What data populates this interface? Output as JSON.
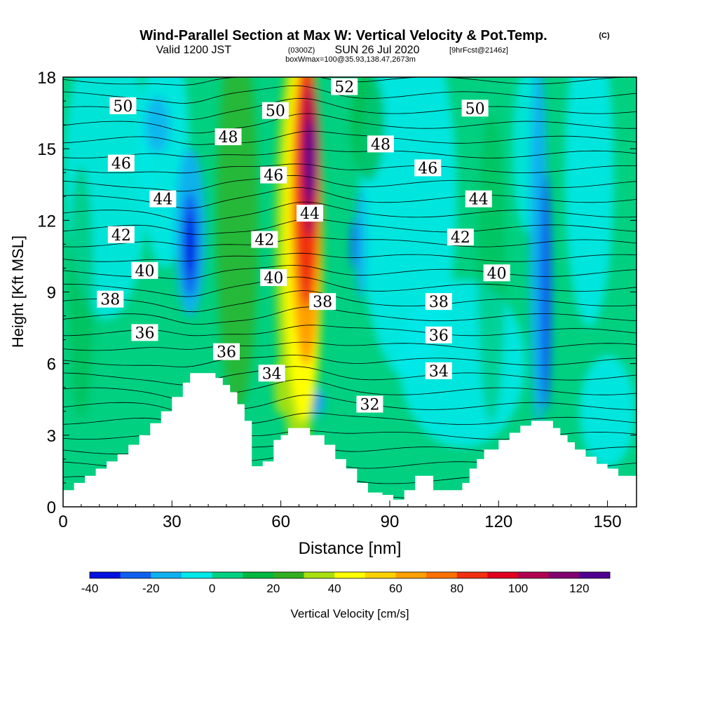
{
  "header": {
    "title_main": "Wind-Parallel Section at Max W: Vertical Velocity & Pot.Temp.",
    "title_copyright": "(C)",
    "valid_prefix": "Valid 1200 JST",
    "valid_utc": "(0300Z)",
    "valid_date": "SUN 26 Jul 2020",
    "forecast_tag": "[9hrFcst@2146z]",
    "box_info": "boxWmax=100@35.93,138.47,2673m"
  },
  "chart_data": {
    "type": "heatmap",
    "xlabel": "Distance [nm]",
    "ylabel": "Height [Kft MSL]",
    "xlim": [
      0,
      158
    ],
    "ylim": [
      0,
      18
    ],
    "x_ticks": [
      "0",
      "30",
      "60",
      "90",
      "120",
      "150"
    ],
    "y_ticks": [
      "0",
      "3",
      "6",
      "9",
      "12",
      "15",
      "18"
    ],
    "colorbar": {
      "label": "Vertical Velocity [cm/s]",
      "range": [
        -40,
        130
      ],
      "tick_labels": [
        "-40",
        "-20",
        "0",
        "20",
        "40",
        "60",
        "80",
        "100",
        "120"
      ],
      "colors": [
        "#0010e0",
        "#1060f0",
        "#10b0f0",
        "#00e8e8",
        "#00d080",
        "#00b840",
        "#30b020",
        "#a8e010",
        "#ffff00",
        "#ffd000",
        "#ffa000",
        "#ff7000",
        "#f03010",
        "#e00020",
        "#b00050",
        "#800070",
        "#500090"
      ]
    },
    "theta_contour_labels": [
      {
        "value": "50",
        "x": 16.5,
        "y": 16.8
      },
      {
        "value": "50",
        "x": 58.5,
        "y": 16.6
      },
      {
        "value": "52",
        "x": 77.5,
        "y": 17.6
      },
      {
        "value": "50",
        "x": 113.5,
        "y": 16.7
      },
      {
        "value": "48",
        "x": 45.5,
        "y": 15.5
      },
      {
        "value": "48",
        "x": 87.5,
        "y": 15.2
      },
      {
        "value": "46",
        "x": 16.0,
        "y": 14.4
      },
      {
        "value": "46",
        "x": 58.0,
        "y": 13.9
      },
      {
        "value": "46",
        "x": 100.5,
        "y": 14.2
      },
      {
        "value": "44",
        "x": 27.5,
        "y": 12.9
      },
      {
        "value": "44",
        "x": 68.0,
        "y": 12.3
      },
      {
        "value": "44",
        "x": 114.5,
        "y": 12.9
      },
      {
        "value": "42",
        "x": 16.0,
        "y": 11.4
      },
      {
        "value": "42",
        "x": 55.5,
        "y": 11.2
      },
      {
        "value": "42",
        "x": 109.5,
        "y": 11.3
      },
      {
        "value": "40",
        "x": 22.5,
        "y": 9.9
      },
      {
        "value": "40",
        "x": 58.0,
        "y": 9.6
      },
      {
        "value": "40",
        "x": 119.5,
        "y": 9.8
      },
      {
        "value": "38",
        "x": 13.0,
        "y": 8.7
      },
      {
        "value": "38",
        "x": 71.5,
        "y": 8.6
      },
      {
        "value": "38",
        "x": 103.5,
        "y": 8.6
      },
      {
        "value": "36",
        "x": 22.5,
        "y": 7.3
      },
      {
        "value": "36",
        "x": 45.0,
        "y": 6.5
      },
      {
        "value": "36",
        "x": 103.5,
        "y": 7.2
      },
      {
        "value": "34",
        "x": 57.5,
        "y": 5.6
      },
      {
        "value": "34",
        "x": 103.5,
        "y": 5.7
      },
      {
        "value": "32",
        "x": 84.5,
        "y": 4.3
      }
    ]
  }
}
